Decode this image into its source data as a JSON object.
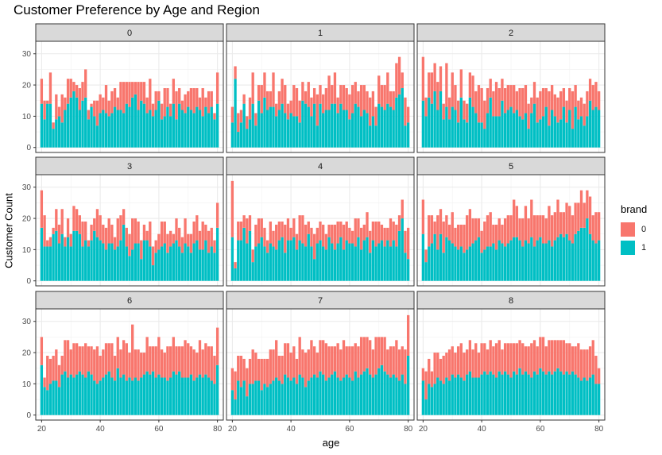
{
  "chart_data": {
    "type": "bar",
    "stacked": true,
    "faceted": true,
    "title": "Customer Preference by Age and Region",
    "xlabel": "age",
    "ylabel": "Customer Count",
    "x_ticks": [
      20,
      40,
      60,
      80
    ],
    "y_ticks": [
      0,
      10,
      20,
      30
    ],
    "xlim": [
      18,
      82
    ],
    "ylim": [
      -1.6,
      34
    ],
    "grid": true,
    "legend": {
      "title": "brand",
      "position": "right",
      "entries": [
        "0",
        "1"
      ]
    },
    "colors": {
      "0": "#F8766D",
      "1": "#00BFC4"
    },
    "ages": [
      20,
      21,
      22,
      23,
      24,
      25,
      26,
      27,
      28,
      29,
      30,
      31,
      32,
      33,
      34,
      35,
      36,
      37,
      38,
      39,
      40,
      41,
      42,
      43,
      44,
      45,
      46,
      47,
      48,
      49,
      50,
      51,
      52,
      53,
      54,
      55,
      56,
      57,
      58,
      59,
      60,
      61,
      62,
      63,
      64,
      65,
      66,
      67,
      68,
      69,
      70,
      71,
      72,
      73,
      74,
      75,
      76,
      77,
      78,
      79,
      80
    ],
    "facets": [
      {
        "label": "0",
        "brand0": [
          8,
          6,
          1,
          10,
          2,
          8,
          3,
          9,
          4,
          8,
          6,
          3,
          4,
          7,
          6,
          9,
          3,
          1,
          5,
          8,
          6,
          4,
          9,
          5,
          7,
          6,
          4,
          9,
          10,
          7,
          8,
          5,
          4,
          9,
          6,
          7,
          5,
          10,
          4,
          6,
          3,
          5,
          9,
          6,
          4,
          8,
          9,
          5,
          3,
          6,
          5,
          7,
          8,
          6,
          4,
          9,
          3,
          7,
          5,
          2,
          10
        ],
        "brand1": [
          14,
          9,
          14,
          14,
          6,
          9,
          10,
          8,
          12,
          14,
          16,
          18,
          16,
          12,
          15,
          16,
          9,
          13,
          10,
          7,
          11,
          12,
          11,
          10,
          11,
          13,
          12,
          12,
          11,
          14,
          13,
          16,
          17,
          12,
          15,
          14,
          11,
          12,
          10,
          12,
          15,
          9,
          10,
          13,
          10,
          14,
          9,
          14,
          12,
          11,
          13,
          12,
          11,
          13,
          12,
          10,
          13,
          11,
          13,
          9,
          14
        ]
      },
      {
        "label": "1",
        "brand0": [
          5,
          4,
          6,
          4,
          3,
          4,
          7,
          10,
          4,
          5,
          9,
          8,
          6,
          5,
          11,
          4,
          6,
          8,
          9,
          5,
          4,
          10,
          9,
          7,
          6,
          4,
          8,
          6,
          5,
          10,
          6,
          6,
          7,
          11,
          6,
          10,
          5,
          6,
          8,
          7,
          8,
          9,
          7,
          5,
          10,
          8,
          7,
          9,
          8,
          6,
          9,
          7,
          8,
          10,
          5,
          6,
          11,
          12,
          5,
          9,
          5
        ],
        "brand1": [
          8,
          22,
          5,
          8,
          14,
          6,
          9,
          14,
          7,
          15,
          11,
          16,
          12,
          13,
          13,
          10,
          12,
          14,
          11,
          9,
          11,
          10,
          10,
          8,
          15,
          14,
          13,
          10,
          14,
          7,
          14,
          11,
          12,
          12,
          14,
          14,
          11,
          14,
          12,
          12,
          9,
          11,
          14,
          13,
          10,
          12,
          11,
          7,
          10,
          7,
          14,
          13,
          12,
          14,
          13,
          12,
          16,
          17,
          19,
          7,
          8
        ]
      },
      {
        "label": "2",
        "brand0": [
          14,
          6,
          8,
          10,
          9,
          9,
          8,
          5,
          14,
          7,
          11,
          8,
          7,
          9,
          6,
          6,
          8,
          10,
          7,
          12,
          11,
          9,
          8,
          6,
          8,
          11,
          9,
          7,
          8,
          8,
          7,
          9,
          6,
          9,
          10,
          9,
          8,
          5,
          7,
          8,
          9,
          9,
          6,
          11,
          8,
          7,
          8,
          9,
          6,
          7,
          7,
          12,
          7,
          6,
          6,
          7,
          8,
          7,
          8,
          8,
          6
        ],
        "brand1": [
          15,
          10,
          16,
          14,
          18,
          12,
          18,
          9,
          13,
          9,
          13,
          12,
          8,
          16,
          9,
          8,
          16,
          13,
          11,
          8,
          8,
          6,
          11,
          16,
          10,
          10,
          10,
          15,
          11,
          12,
          13,
          11,
          12,
          10,
          9,
          11,
          6,
          11,
          14,
          8,
          9,
          10,
          13,
          7,
          12,
          10,
          8,
          9,
          13,
          8,
          12,
          6,
          13,
          9,
          10,
          7,
          10,
          15,
          12,
          13,
          12
        ]
      },
      {
        "label": "3",
        "brand0": [
          12,
          10,
          2,
          3,
          2,
          7,
          6,
          8,
          3,
          6,
          4,
          8,
          7,
          6,
          8,
          6,
          2,
          5,
          4,
          9,
          8,
          6,
          7,
          8,
          6,
          4,
          9,
          8,
          5,
          6,
          7,
          10,
          8,
          7,
          6,
          5,
          3,
          8,
          6,
          4,
          5,
          8,
          7,
          6,
          5,
          3,
          7,
          6,
          5,
          8,
          4,
          6,
          7,
          8,
          6,
          9,
          5,
          7,
          6,
          4,
          8
        ],
        "brand1": [
          17,
          11,
          11,
          11,
          15,
          16,
          12,
          15,
          11,
          14,
          11,
          16,
          16,
          15,
          11,
          13,
          11,
          13,
          16,
          14,
          13,
          12,
          10,
          12,
          12,
          10,
          11,
          13,
          18,
          11,
          8,
          10,
          12,
          12,
          7,
          13,
          13,
          11,
          5,
          9,
          10,
          11,
          12,
          9,
          11,
          12,
          13,
          11,
          9,
          12,
          11,
          9,
          12,
          13,
          10,
          10,
          13,
          9,
          11,
          9,
          17
        ]
      },
      {
        "label": "4",
        "brand0": [
          18,
          2,
          6,
          6,
          4,
          8,
          5,
          4,
          7,
          8,
          6,
          6,
          4,
          7,
          5,
          8,
          6,
          5,
          9,
          7,
          4,
          6,
          5,
          8,
          9,
          7,
          4,
          6,
          8,
          5,
          6,
          7,
          5,
          4,
          6,
          8,
          7,
          5,
          8,
          6,
          5,
          4,
          9,
          6,
          7,
          5,
          8,
          7,
          6,
          8,
          7,
          5,
          6,
          4,
          9,
          6,
          7,
          5,
          6,
          7,
          10
        ],
        "brand1": [
          14,
          4,
          13,
          13,
          17,
          12,
          16,
          6,
          11,
          12,
          14,
          11,
          9,
          12,
          11,
          10,
          13,
          14,
          9,
          13,
          13,
          14,
          10,
          13,
          12,
          11,
          15,
          11,
          7,
          12,
          13,
          11,
          10,
          14,
          12,
          10,
          12,
          14,
          10,
          13,
          12,
          12,
          11,
          14,
          10,
          13,
          14,
          9,
          13,
          11,
          12,
          13,
          11,
          13,
          11,
          13,
          11,
          16,
          20,
          9,
          7
        ]
      },
      {
        "label": "5",
        "brand0": [
          11,
          4,
          10,
          9,
          4,
          11,
          8,
          10,
          7,
          5,
          10,
          6,
          8,
          7,
          9,
          11,
          12,
          8,
          7,
          6,
          7,
          9,
          10,
          11,
          6,
          8,
          7,
          6,
          9,
          9,
          8,
          12,
          10,
          7,
          9,
          11,
          8,
          12,
          10,
          8,
          7,
          9,
          8,
          11,
          10,
          9,
          12,
          7,
          8,
          10,
          11,
          9,
          10,
          9,
          12,
          8,
          9,
          12,
          8,
          10,
          9
        ],
        "brand1": [
          15,
          6,
          11,
          12,
          15,
          10,
          15,
          9,
          14,
          13,
          12,
          11,
          10,
          11,
          9,
          10,
          11,
          12,
          13,
          14,
          9,
          10,
          11,
          11,
          12,
          10,
          13,
          12,
          11,
          12,
          13,
          14,
          14,
          13,
          11,
          13,
          12,
          14,
          11,
          13,
          14,
          12,
          12,
          13,
          11,
          13,
          14,
          15,
          14,
          15,
          13,
          12,
          15,
          16,
          17,
          17,
          20,
          15,
          13,
          12,
          13
        ]
      },
      {
        "label": "6",
        "brand0": [
          9,
          3,
          11,
          8,
          8,
          10,
          7,
          6,
          10,
          12,
          8,
          11,
          10,
          8,
          9,
          11,
          8,
          9,
          10,
          12,
          8,
          9,
          10,
          9,
          11,
          8,
          10,
          9,
          11,
          12,
          8,
          18,
          9,
          10,
          8,
          7,
          11,
          9,
          8,
          10,
          12,
          9,
          8,
          11,
          10,
          11,
          9,
          8,
          10,
          12,
          11,
          9,
          10,
          8,
          11,
          9,
          10,
          10,
          11,
          9,
          12
        ],
        "brand1": [
          16,
          9,
          8,
          10,
          11,
          11,
          9,
          13,
          14,
          12,
          13,
          12,
          13,
          14,
          13,
          12,
          14,
          13,
          11,
          10,
          11,
          12,
          13,
          14,
          12,
          11,
          15,
          12,
          13,
          11,
          12,
          11,
          12,
          11,
          12,
          13,
          14,
          13,
          14,
          12,
          13,
          12,
          12,
          11,
          12,
          14,
          13,
          14,
          12,
          12,
          12,
          13,
          11,
          12,
          13,
          12,
          13,
          12,
          11,
          10,
          16
        ]
      },
      {
        "label": "7",
        "brand0": [
          7,
          9,
          8,
          10,
          7,
          9,
          8,
          11,
          9,
          7,
          10,
          8,
          9,
          11,
          10,
          12,
          8,
          9,
          10,
          11,
          9,
          10,
          8,
          12,
          9,
          11,
          10,
          12,
          9,
          8,
          10,
          11,
          12,
          10,
          9,
          8,
          11,
          10,
          12,
          9,
          10,
          11,
          9,
          10,
          12,
          11,
          10,
          11,
          9,
          12,
          10,
          9,
          11,
          8,
          10,
          9,
          12,
          10,
          9,
          11,
          13
        ],
        "brand1": [
          8,
          5,
          11,
          9,
          11,
          6,
          10,
          10,
          11,
          11,
          8,
          10,
          9,
          10,
          11,
          12,
          11,
          10,
          13,
          12,
          11,
          12,
          10,
          13,
          12,
          9,
          11,
          12,
          13,
          12,
          14,
          13,
          11,
          12,
          13,
          14,
          12,
          11,
          12,
          13,
          12,
          11,
          14,
          12,
          13,
          14,
          15,
          13,
          12,
          13,
          15,
          16,
          14,
          13,
          12,
          13,
          12,
          11,
          13,
          10,
          19
        ]
      },
      {
        "label": "8",
        "brand0": [
          4,
          9,
          8,
          5,
          10,
          8,
          7,
          9,
          8,
          10,
          9,
          8,
          9,
          11,
          9,
          8,
          10,
          9,
          11,
          8,
          10,
          9,
          8,
          10,
          9,
          11,
          10,
          8,
          9,
          10,
          11,
          9,
          10,
          9,
          10,
          8,
          9,
          11,
          10,
          9,
          10,
          11,
          9,
          10,
          11,
          10,
          9,
          10,
          11,
          9,
          10,
          8,
          9,
          11,
          10,
          9,
          10,
          10,
          11,
          9,
          5
        ],
        "brand1": [
          11,
          5,
          10,
          9,
          10,
          12,
          11,
          10,
          12,
          11,
          13,
          12,
          13,
          12,
          11,
          13,
          14,
          12,
          12,
          12,
          13,
          14,
          13,
          14,
          13,
          12,
          14,
          13,
          14,
          13,
          12,
          14,
          13,
          15,
          13,
          14,
          13,
          12,
          14,
          13,
          15,
          14,
          13,
          14,
          13,
          14,
          15,
          14,
          13,
          14,
          13,
          14,
          13,
          12,
          11,
          12,
          11,
          12,
          13,
          10,
          10
        ]
      }
    ]
  }
}
